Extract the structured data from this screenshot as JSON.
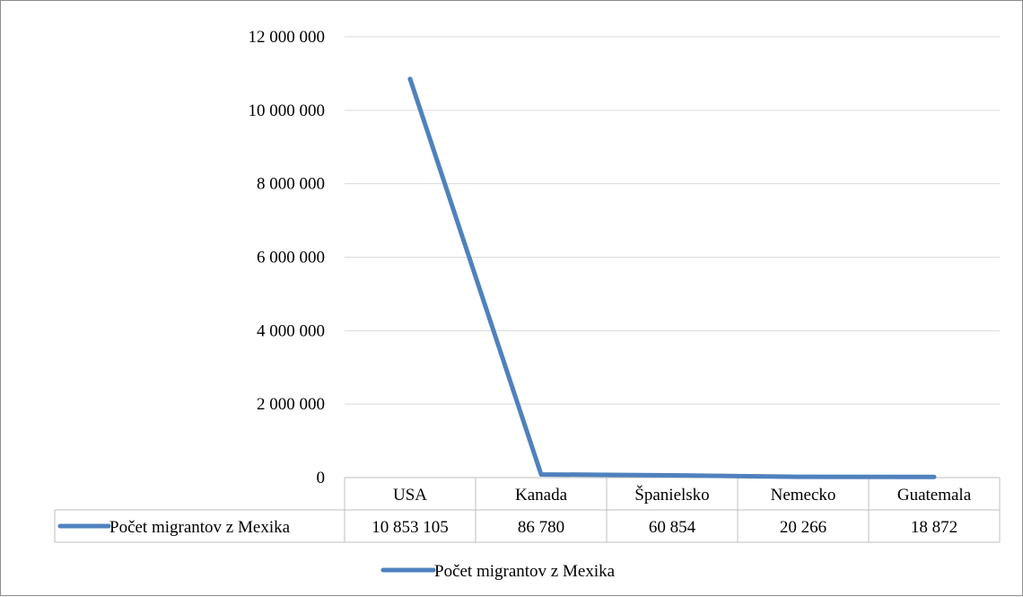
{
  "chart_data": {
    "type": "line",
    "categories": [
      "USA",
      "Kanada",
      "Španielsko",
      "Nemecko",
      "Guatemala"
    ],
    "series": [
      {
        "name": "Počet migrantov z Mexika",
        "values": [
          10853105,
          86780,
          60854,
          20266,
          18872
        ],
        "value_labels": [
          "10 853 105",
          "86 780",
          "60 854",
          "20 266",
          "18 872"
        ],
        "color": "#4f81bd"
      }
    ],
    "ylim": [
      0,
      12000000
    ],
    "y_ticks": [
      0,
      2000000,
      4000000,
      6000000,
      8000000,
      10000000,
      12000000
    ],
    "y_tick_labels": [
      "0",
      "2 000 000",
      "4 000 000",
      "6 000 000",
      "8 000 000",
      "10 000 000",
      "12 000 000"
    ],
    "grid": true,
    "data_table": true,
    "legend": {
      "placement": "bottom",
      "entries": [
        "Počet migrantov z Mexika"
      ]
    }
  }
}
